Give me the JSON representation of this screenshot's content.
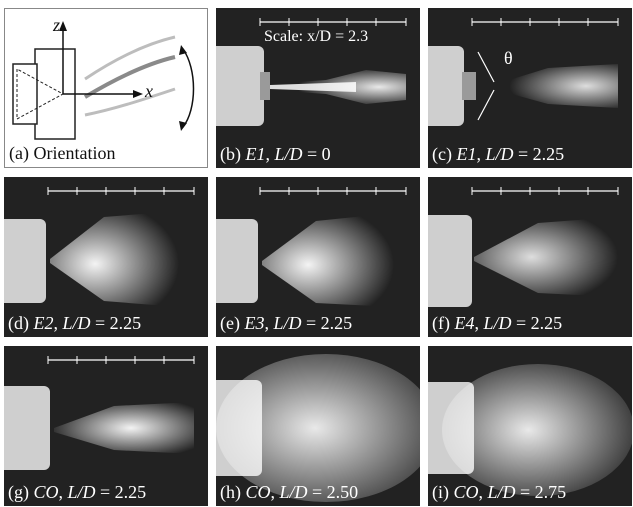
{
  "panels": [
    {
      "id": "a",
      "caption_prefix": "(a)",
      "caption_text": "Orientation"
    },
    {
      "id": "b",
      "caption_prefix": "(b)",
      "case": "E1",
      "ratio_label": "L/D",
      "value": "= 0"
    },
    {
      "id": "c",
      "caption_prefix": "(c)",
      "case": "E1",
      "ratio_label": "L/D",
      "value": "= 2.25"
    },
    {
      "id": "d",
      "caption_prefix": "(d)",
      "case": "E2",
      "ratio_label": "L/D",
      "value": "= 2.25"
    },
    {
      "id": "e",
      "caption_prefix": "(e)",
      "case": "E3",
      "ratio_label": "L/D",
      "value": "= 2.25"
    },
    {
      "id": "f",
      "caption_prefix": "(f)",
      "case": "E4",
      "ratio_label": "L/D",
      "value": "= 2.25"
    },
    {
      "id": "g",
      "caption_prefix": "(g)",
      "case": "CO",
      "ratio_label": "L/D",
      "value": "= 2.25"
    },
    {
      "id": "h",
      "caption_prefix": "(h)",
      "case": "CO",
      "ratio_label": "L/D",
      "value": "= 2.50"
    },
    {
      "id": "i",
      "caption_prefix": "(i)",
      "case": "CO",
      "ratio_label": "L/D",
      "value": "= 2.75"
    }
  ],
  "scale_label": "Scale: x/D = 2.3",
  "theta_label": "θ",
  "axes": {
    "z": "z",
    "x": "x"
  },
  "colors": {
    "background": "#222222",
    "jet": "#f2f2f2",
    "nozzle": "#cfcfcf"
  }
}
